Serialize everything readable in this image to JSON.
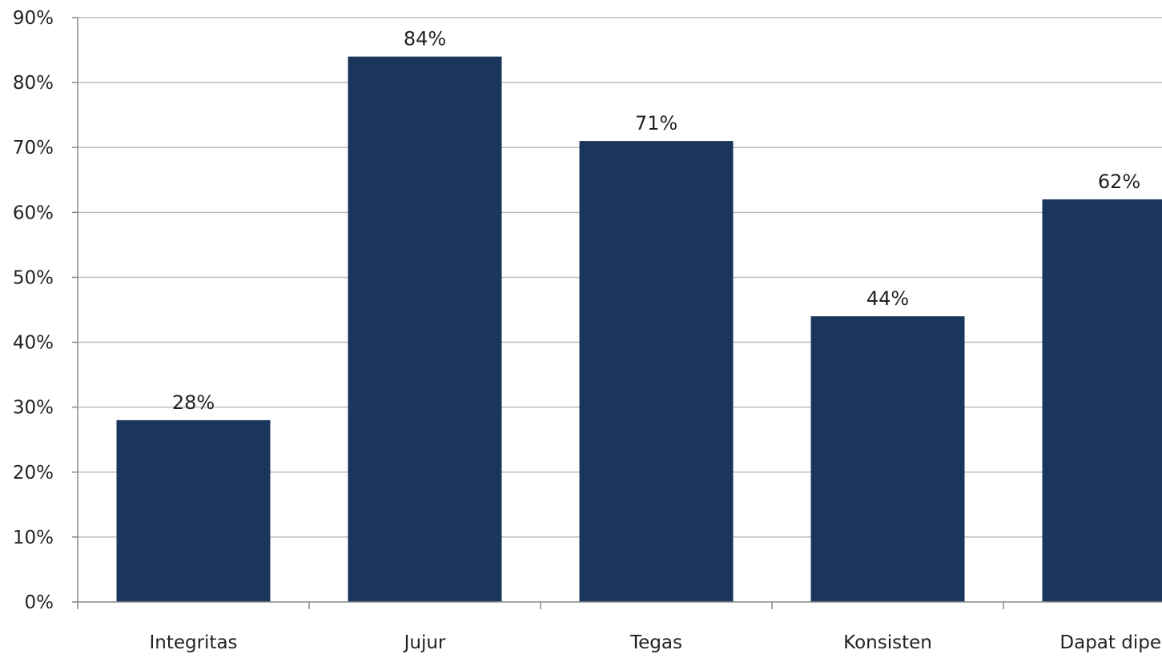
{
  "colors": {
    "bar": "#1a365d",
    "grid": "#bdbdbd",
    "axis": "#888888",
    "text": "#222222",
    "background": "#ffffff"
  },
  "chart_data": {
    "type": "bar",
    "categories": [
      "Integritas",
      "Jujur",
      "Tegas",
      "Konsisten",
      "Dapat diperc"
    ],
    "values": [
      28,
      84,
      71,
      44,
      62
    ],
    "data_labels": [
      "28%",
      "84%",
      "71%",
      "44%",
      "62%"
    ],
    "y_ticks": [
      "0%",
      "10%",
      "20%",
      "30%",
      "40%",
      "50%",
      "60%",
      "70%",
      "80%",
      "90%"
    ],
    "ylim": [
      0,
      90
    ],
    "y_unit": "%",
    "grid": true,
    "legend": "none"
  }
}
